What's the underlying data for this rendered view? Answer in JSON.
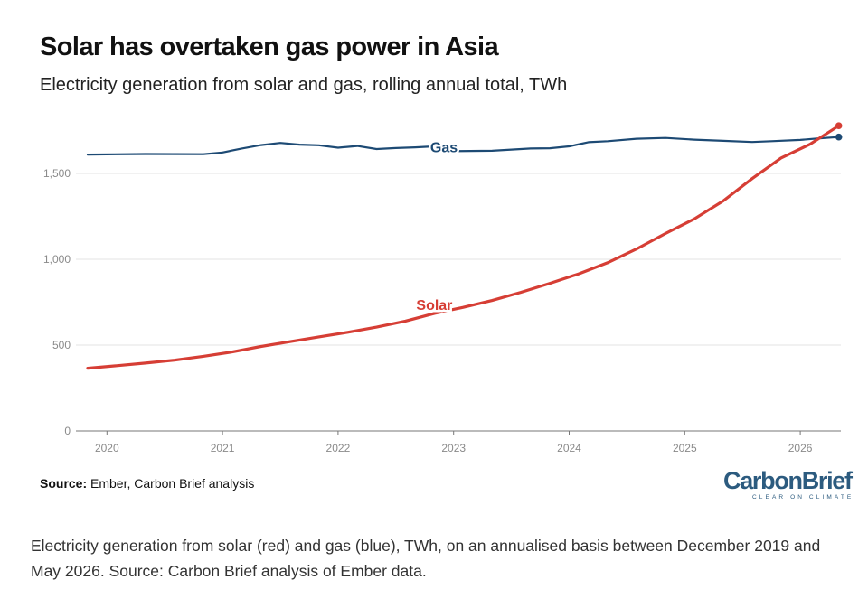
{
  "header": {
    "title": "Solar has overtaken gas power in Asia",
    "subtitle": "Electricity generation from solar and gas, rolling annual total, TWh"
  },
  "source": {
    "label": "Source:",
    "text": "Ember, Carbon Brief analysis"
  },
  "logo": {
    "name": "CarbonBrief",
    "tagline": "CLEAR ON CLIMATE"
  },
  "caption": "Electricity generation from solar (red) and gas (blue), TWh, on an annualised basis between December 2019 and May 2026. Source: Carbon Brief analysis of Ember data.",
  "chart_data": {
    "type": "line",
    "title": "Solar has overtaken gas power in Asia",
    "subtitle": "Electricity generation from solar and gas, rolling annual total, TWh",
    "xlabel": "",
    "ylabel": "",
    "x_ticks": [
      "2020",
      "2021",
      "2022",
      "2023",
      "2024",
      "2025",
      "2026"
    ],
    "y_ticks": [
      "0",
      "500",
      "1,000",
      "1,500"
    ],
    "xlim": [
      "2019-11",
      "2026-05"
    ],
    "ylim": [
      0,
      1800
    ],
    "grid": "horizontal",
    "legend": "inline labels",
    "series": [
      {
        "name": "Gas",
        "color": "#1d4a74",
        "points": [
          [
            "2019-11",
            1610
          ],
          [
            "2020-05",
            1613
          ],
          [
            "2020-11",
            1612
          ],
          [
            "2021-01",
            1622
          ],
          [
            "2021-03",
            1645
          ],
          [
            "2021-05",
            1665
          ],
          [
            "2021-07",
            1678
          ],
          [
            "2021-09",
            1668
          ],
          [
            "2021-11",
            1664
          ],
          [
            "2022-01",
            1650
          ],
          [
            "2022-03",
            1660
          ],
          [
            "2022-05",
            1642
          ],
          [
            "2022-07",
            1648
          ],
          [
            "2022-09",
            1652
          ],
          [
            "2022-11",
            1658
          ],
          [
            "2023-01",
            1630
          ],
          [
            "2023-05",
            1632
          ],
          [
            "2023-09",
            1645
          ],
          [
            "2023-11",
            1647
          ],
          [
            "2024-01",
            1658
          ],
          [
            "2024-03",
            1682
          ],
          [
            "2024-05",
            1688
          ],
          [
            "2024-08",
            1702
          ],
          [
            "2024-11",
            1707
          ],
          [
            "2025-02",
            1697
          ],
          [
            "2025-05",
            1690
          ],
          [
            "2025-08",
            1683
          ],
          [
            "2025-10",
            1688
          ],
          [
            "2026-01",
            1695
          ],
          [
            "2026-03",
            1705
          ],
          [
            "2026-05",
            1712
          ]
        ]
      },
      {
        "name": "Solar",
        "color": "#d63e35",
        "points": [
          [
            "2019-11",
            365
          ],
          [
            "2020-02",
            380
          ],
          [
            "2020-05",
            395
          ],
          [
            "2020-08",
            412
          ],
          [
            "2020-11",
            435
          ],
          [
            "2021-02",
            460
          ],
          [
            "2021-05",
            492
          ],
          [
            "2021-08",
            520
          ],
          [
            "2021-11",
            548
          ],
          [
            "2022-02",
            575
          ],
          [
            "2022-05",
            605
          ],
          [
            "2022-08",
            640
          ],
          [
            "2022-11",
            685
          ],
          [
            "2023-02",
            720
          ],
          [
            "2023-05",
            760
          ],
          [
            "2023-08",
            808
          ],
          [
            "2023-11",
            860
          ],
          [
            "2024-02",
            915
          ],
          [
            "2024-05",
            980
          ],
          [
            "2024-08",
            1060
          ],
          [
            "2024-11",
            1150
          ],
          [
            "2025-02",
            1235
          ],
          [
            "2025-05",
            1340
          ],
          [
            "2025-08",
            1470
          ],
          [
            "2025-11",
            1590
          ],
          [
            "2026-02",
            1670
          ],
          [
            "2026-05",
            1778
          ]
        ]
      }
    ]
  }
}
